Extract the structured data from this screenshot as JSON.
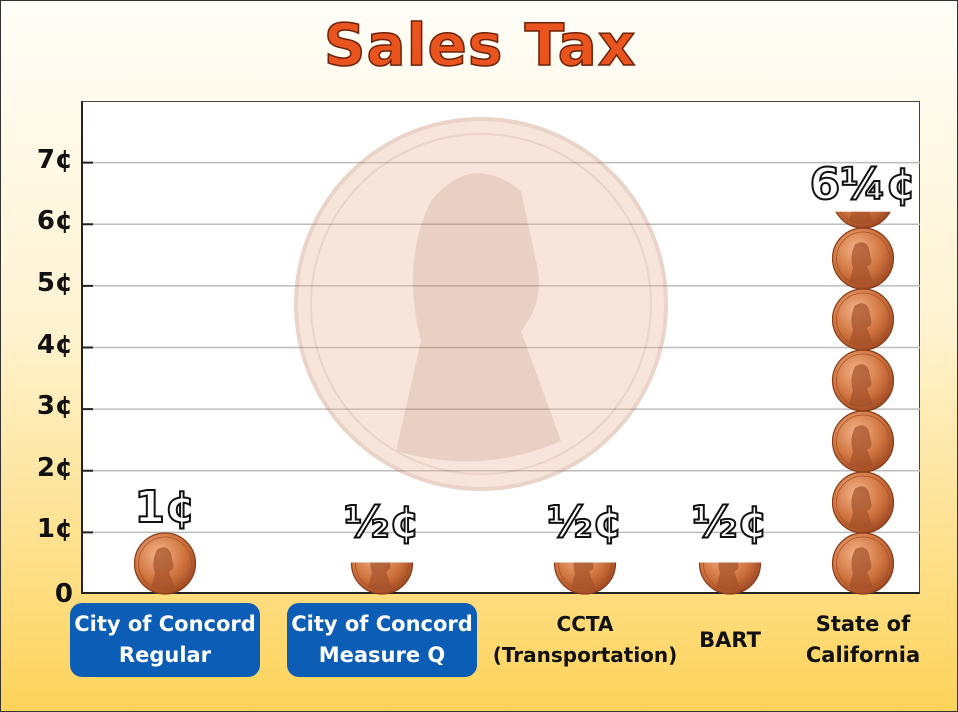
{
  "chart_data": {
    "type": "bar",
    "title": "Sales Tax",
    "categories": [
      "City of Concord\nRegular",
      "City of Concord\nMeasure Q",
      "CCTA\n(Transportation)",
      "BART",
      "State of\nCalifornia"
    ],
    "values": [
      1,
      0.5,
      0.5,
      0.5,
      6.25
    ],
    "data_labels": [
      "1¢",
      "½¢",
      "½¢",
      "½¢",
      "6¼¢"
    ],
    "ytick_labels": [
      "0",
      "1¢",
      "2¢",
      "3¢",
      "4¢",
      "5¢",
      "6¢",
      "7¢"
    ],
    "ylim": [
      0,
      8
    ],
    "grid": true,
    "mark": "stacked pennies",
    "highlighted_categories": [
      0,
      1
    ],
    "colors": {
      "title": "#e8531e",
      "pill": "#0b5db6",
      "coin": "#c8683a"
    }
  }
}
